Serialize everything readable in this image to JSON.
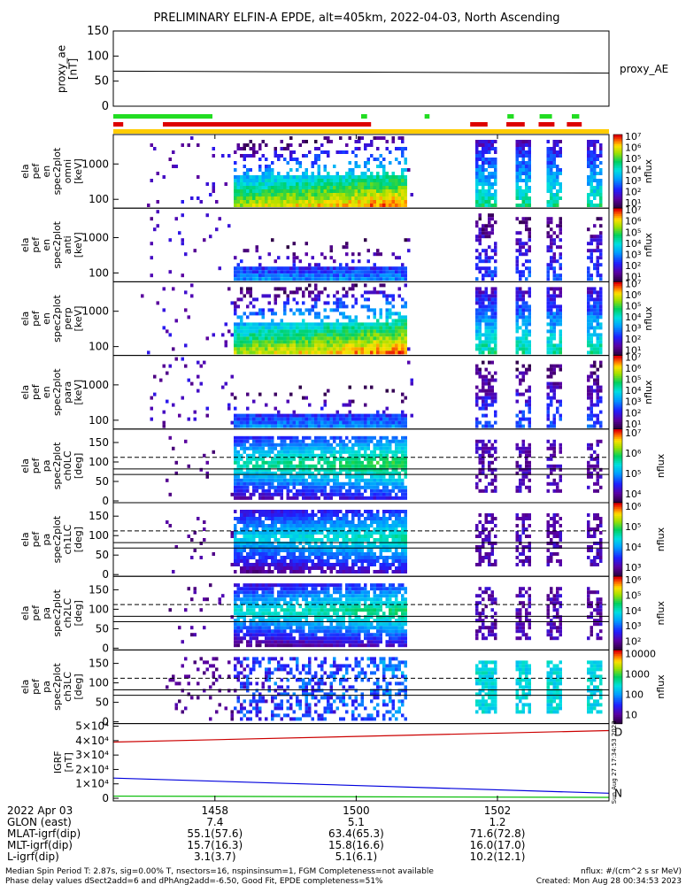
{
  "title": "PRELIMINARY ELFIN-A EPDE, alt=405km, 2022-04-03, North Ascending",
  "colors": {
    "ind_green": "#22dd22",
    "ind_red": "#dd0000",
    "ind_yellow": "#ffcc00",
    "line_red": "#cc0000",
    "line_blue": "#0000dd",
    "line_green": "#00bb00"
  },
  "proxy": {
    "ylabel": "proxy_ae [nT]",
    "ylabel_lines": [
      "proxy_ae",
      "[nT]"
    ],
    "right_label": "proxy_AE",
    "ticks": [
      "150",
      "100",
      "50",
      "0"
    ],
    "ylim": [
      0,
      150
    ],
    "line": {
      "start": 70,
      "end": 66
    }
  },
  "indicator_bars": {
    "green": [
      [
        0,
        0.2
      ],
      [
        0.5,
        0.512
      ],
      [
        0.628,
        0.638
      ],
      [
        0.795,
        0.808
      ],
      [
        0.86,
        0.885
      ],
      [
        0.925,
        0.94
      ]
    ],
    "red": [
      [
        0,
        0.02
      ],
      [
        0.1,
        0.52
      ],
      [
        0.72,
        0.755
      ],
      [
        0.793,
        0.83
      ],
      [
        0.858,
        0.89
      ],
      [
        0.915,
        0.945
      ]
    ]
  },
  "spectro_panels": [
    {
      "label_lines": [
        "ela",
        "pef",
        "en",
        "spec2plot",
        "omni",
        "[keV]"
      ],
      "ticks": [
        "1000",
        "100"
      ],
      "cbar_ticks": [
        "10⁷",
        "10⁶",
        "10⁵",
        "10⁴",
        "10³",
        "10²",
        "10¹"
      ],
      "cbar_label": "nflux"
    },
    {
      "label_lines": [
        "ela",
        "pef",
        "en",
        "spec2plot",
        "anti",
        "[keV]"
      ],
      "ticks": [
        "1000",
        "100"
      ],
      "cbar_ticks": [
        "10⁷",
        "10⁶",
        "10⁵",
        "10⁴",
        "10³",
        "10²",
        "10¹"
      ],
      "cbar_label": "nflux"
    },
    {
      "label_lines": [
        "ela",
        "pef",
        "en",
        "spec2plot",
        "perp",
        "[keV]"
      ],
      "ticks": [
        "1000",
        "100"
      ],
      "cbar_ticks": [
        "10⁷",
        "10⁶",
        "10⁵",
        "10⁴",
        "10³",
        "10²",
        "10¹"
      ],
      "cbar_label": "nflux"
    },
    {
      "label_lines": [
        "ela",
        "pef",
        "en",
        "spec2plot",
        "para",
        "[keV]"
      ],
      "ticks": [
        "1000",
        "100"
      ],
      "cbar_ticks": [
        "10⁷",
        "10⁶",
        "10⁵",
        "10⁴",
        "10³",
        "10²",
        "10¹"
      ],
      "cbar_label": "nflux"
    }
  ],
  "pa_panels": [
    {
      "label_lines": [
        "ela",
        "pef",
        "pa",
        "spec2plot",
        "ch0LC",
        "[deg]"
      ],
      "ticks": [
        "150",
        "100",
        "50",
        "0"
      ],
      "cbar_ticks": [
        "10⁷",
        "10⁶",
        "10⁵",
        "10⁴"
      ],
      "cbar_label": "nflux"
    },
    {
      "label_lines": [
        "ela",
        "pef",
        "pa",
        "spec2plot",
        "ch1LC",
        "[deg]"
      ],
      "ticks": [
        "150",
        "100",
        "50",
        "0"
      ],
      "cbar_ticks": [
        "10⁶",
        "10⁵",
        "10⁴",
        "10³"
      ],
      "cbar_label": "nflux"
    },
    {
      "label_lines": [
        "ela",
        "pef",
        "pa",
        "spec2plot",
        "ch2LC",
        "[deg]"
      ],
      "ticks": [
        "150",
        "100",
        "50",
        "0"
      ],
      "cbar_ticks": [
        "10⁶",
        "10⁵",
        "10⁴",
        "10³",
        "10²"
      ],
      "cbar_label": "nflux"
    },
    {
      "label_lines": [
        "ela",
        "pef",
        "pa",
        "spec2plot",
        "ch3LC",
        "[deg]"
      ],
      "ticks": [
        "150",
        "100",
        "50",
        "0"
      ],
      "cbar_ticks": [
        "10000",
        "1000",
        "100",
        "10"
      ],
      "cbar_label": "nflux"
    }
  ],
  "igrf": {
    "label_lines": [
      "IGRF",
      "[nT]"
    ],
    "ticks": [
      "5×10⁴",
      "4×10⁴",
      "3×10⁴",
      "2×10⁴",
      "1×10⁴",
      "0"
    ],
    "ylim": [
      0,
      50000
    ],
    "right_marks": [
      "D",
      "N"
    ],
    "side_text": "Sun Aug 27 17:34:53 2023",
    "lines": {
      "red": {
        "start": 39000,
        "end": 47000
      },
      "blue": {
        "start": 14000,
        "end": 3500
      },
      "green": {
        "start": 1500,
        "end": 600
      }
    }
  },
  "footer": {
    "rows": [
      {
        "label": "2022 Apr 03",
        "values": [
          "1458",
          "1500",
          "1502"
        ]
      },
      {
        "label": "GLON (east)",
        "values": [
          "7.4",
          "5.1",
          "1.2"
        ]
      },
      {
        "label": "MLAT-igrf(dip)",
        "values": [
          "55.1(57.6)",
          "63.4(65.3)",
          "71.6(72.8)"
        ]
      },
      {
        "label": "MLT-igrf(dip)",
        "values": [
          "15.7(16.3)",
          "15.8(16.6)",
          "16.0(17.0)"
        ]
      },
      {
        "label": "L-igrf(dip)",
        "values": [
          "3.1(3.7)",
          "5.1(6.1)",
          "10.2(12.1)"
        ]
      }
    ],
    "note1": "Median Spin Period T: 2.87s, sig=0.00% T, nsectors=16, nspinsinsum=1, FGM Completeness=not available",
    "note2": "Phase delay values dSect2add=6 and dPhAng2add=-6.50, Good Fit, EPDE completeness=51%",
    "note1_right": "nflux: #/(cm^2 s sr MeV)",
    "note2_right": "Created: Mon Aug 28 00:34:53 2023"
  },
  "chart_data": {
    "type": "heatmap",
    "title": "PRELIMINARY ELFIN-A EPDE, alt=405km, 2022-04-03, North Ascending",
    "x_tick_labels": [
      "1458",
      "1500",
      "1502"
    ],
    "series": [
      {
        "name": "proxy_AE",
        "values": [
          70,
          66
        ]
      },
      {
        "name": "D",
        "values": [
          39000,
          47000
        ]
      },
      {
        "name": "N",
        "values": [
          14000,
          3500
        ]
      }
    ],
    "panels": [
      "omni",
      "anti",
      "perp",
      "para",
      "ch0LC",
      "ch1LC",
      "ch2LC",
      "ch3LC"
    ],
    "colorbar_label": "nflux",
    "colorbar_units": "nflux: #/(cm^2 s sr MeV)"
  }
}
